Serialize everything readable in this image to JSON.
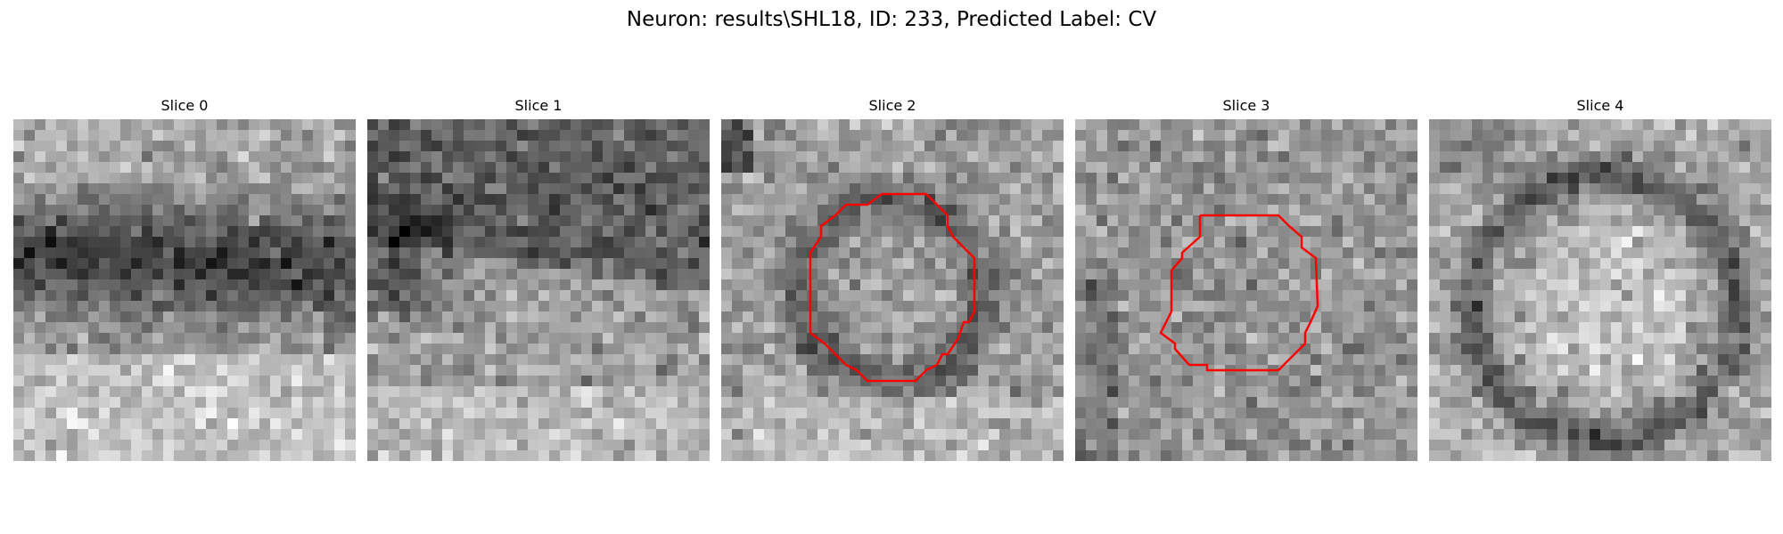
{
  "figure": {
    "title": "Neuron: results\\SHL18, ID: 233, Predicted Label: CV"
  },
  "panels": [
    {
      "title": "Slice 0",
      "has_contour": false
    },
    {
      "title": "Slice 1",
      "has_contour": false
    },
    {
      "title": "Slice 2",
      "has_contour": true
    },
    {
      "title": "Slice 3",
      "has_contour": true
    },
    {
      "title": "Slice 4",
      "has_contour": false
    }
  ],
  "colors": {
    "contour": "#ff0000",
    "background": "#ffffff"
  },
  "image": {
    "colormap": "gray"
  }
}
